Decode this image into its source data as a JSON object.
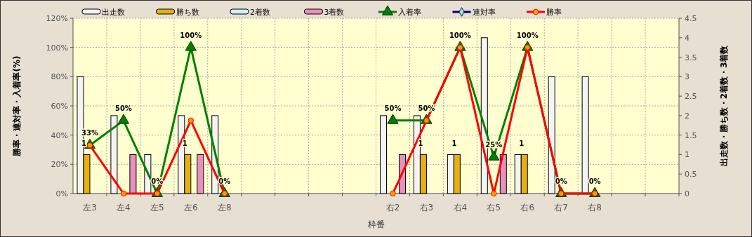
{
  "chart_data": {
    "type": "bar",
    "xlabel": "枠番",
    "ylabel": "勝率・連対率・入着率(%)",
    "y2label": "出走数・勝ち数・2着数・3着数",
    "categories": [
      "左3",
      "左4",
      "左5",
      "左6",
      "左8",
      null,
      null,
      null,
      null,
      "右2",
      "右3",
      "右4",
      "右5",
      "右6",
      "右7",
      "右8",
      null,
      null
    ],
    "series": [
      {
        "name": "出走数",
        "type": "bar",
        "axis": "y2",
        "color": "#f4f4f4",
        "values": [
          3,
          2,
          1,
          2,
          2,
          null,
          null,
          null,
          null,
          2,
          2,
          1,
          4,
          1,
          3,
          3,
          null,
          null
        ]
      },
      {
        "name": "勝ち数",
        "type": "bar",
        "axis": "y2",
        "color": "#e6b010",
        "values": [
          1,
          0,
          0,
          1,
          0,
          null,
          null,
          null,
          null,
          0,
          1,
          1,
          0,
          1,
          0,
          0,
          null,
          null
        ],
        "value_labels": [
          "1",
          null,
          null,
          "1",
          null,
          null,
          null,
          null,
          null,
          null,
          "1",
          "1",
          null,
          "1",
          null,
          null,
          null,
          null
        ]
      },
      {
        "name": "2着数",
        "type": "bar",
        "axis": "y2",
        "color": "#c8f4f4",
        "values": [
          0,
          0,
          0,
          0,
          0,
          null,
          null,
          null,
          null,
          0,
          0,
          0,
          0,
          0,
          0,
          0,
          null,
          null
        ]
      },
      {
        "name": "3着数",
        "type": "bar",
        "axis": "y2",
        "color": "#e890c0",
        "values": [
          0,
          1,
          0,
          1,
          0,
          null,
          null,
          null,
          null,
          1,
          0,
          0,
          1,
          0,
          0,
          0,
          null,
          null
        ]
      },
      {
        "name": "入着率",
        "type": "line",
        "marker": "triangle",
        "color": "#008000",
        "values": [
          33,
          50,
          0,
          100,
          0,
          null,
          null,
          null,
          null,
          50,
          50,
          100,
          25,
          100,
          0,
          0,
          null,
          null
        ],
        "value_labels": [
          "33%",
          "50%",
          "0%",
          "100%",
          "0%",
          null,
          null,
          null,
          null,
          "50%",
          "50%",
          "100%",
          "25%",
          "100%",
          "0%",
          "0%",
          null,
          null
        ]
      },
      {
        "name": "連対率",
        "type": "line",
        "marker": "diamond",
        "color": "#000080",
        "values": [
          null,
          null,
          null,
          null,
          null,
          null,
          null,
          null,
          null,
          null,
          null,
          null,
          null,
          null,
          null,
          null,
          null,
          null
        ]
      },
      {
        "name": "勝率",
        "type": "line",
        "marker": "circle",
        "color": "#ff0000",
        "values": [
          33,
          0,
          0,
          50,
          0,
          null,
          null,
          null,
          null,
          0,
          50,
          100,
          0,
          100,
          0,
          0,
          null,
          null
        ]
      }
    ],
    "ylim": [
      0,
      120
    ],
    "yticks": [
      {
        "value": 0,
        "label": "0%"
      },
      {
        "value": 20,
        "label": "20%"
      },
      {
        "value": 40,
        "label": "40%"
      },
      {
        "value": 60,
        "label": "60%"
      },
      {
        "value": 80,
        "label": "80%"
      },
      {
        "value": 100,
        "label": "100%"
      },
      {
        "value": 120,
        "label": "120%"
      }
    ],
    "y2lim": [
      0,
      4.5
    ],
    "y2ticks": [
      0,
      0.5,
      1,
      1.5,
      2,
      2.5,
      3,
      3.5,
      4,
      4.5
    ],
    "grid": true,
    "legend": "top"
  }
}
